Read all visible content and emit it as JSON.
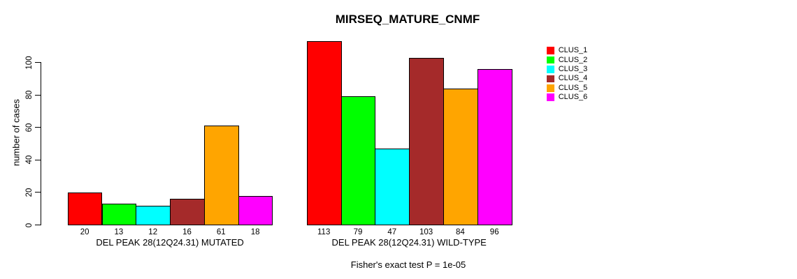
{
  "title": "MIRSEQ_MATURE_CNMF",
  "footer": "Fisher's exact test P = 1e-05",
  "y_axis": {
    "label": "number of cases",
    "ticks": [
      0,
      20,
      40,
      60,
      80,
      100
    ]
  },
  "chart_data": {
    "type": "bar",
    "title": "MIRSEQ_MATURE_CNMF",
    "xlabel": "",
    "ylabel": "number of cases",
    "ylim": [
      0,
      113
    ],
    "yticks": [
      0,
      20,
      40,
      60,
      80,
      100
    ],
    "grid": false,
    "legend_position": "right",
    "bar_border_color": "#000000",
    "series": [
      {
        "name": "CLUS_1",
        "color": "#FF0000"
      },
      {
        "name": "CLUS_2",
        "color": "#00FF00"
      },
      {
        "name": "CLUS_3",
        "color": "#00FFFF"
      },
      {
        "name": "CLUS_4",
        "color": "#A52A2A"
      },
      {
        "name": "CLUS_5",
        "color": "#FFA500"
      },
      {
        "name": "CLUS_6",
        "color": "#FF00FF"
      }
    ],
    "groups": [
      {
        "label": "DEL PEAK 28(12Q24.31) MUTATED",
        "values": [
          20,
          13,
          12,
          16,
          61,
          18
        ]
      },
      {
        "label": "DEL PEAK 28(12Q24.31) WILD-TYPE",
        "values": [
          113,
          79,
          47,
          103,
          84,
          96
        ]
      }
    ],
    "annotation": "Fisher's exact test P = 1e-05"
  }
}
